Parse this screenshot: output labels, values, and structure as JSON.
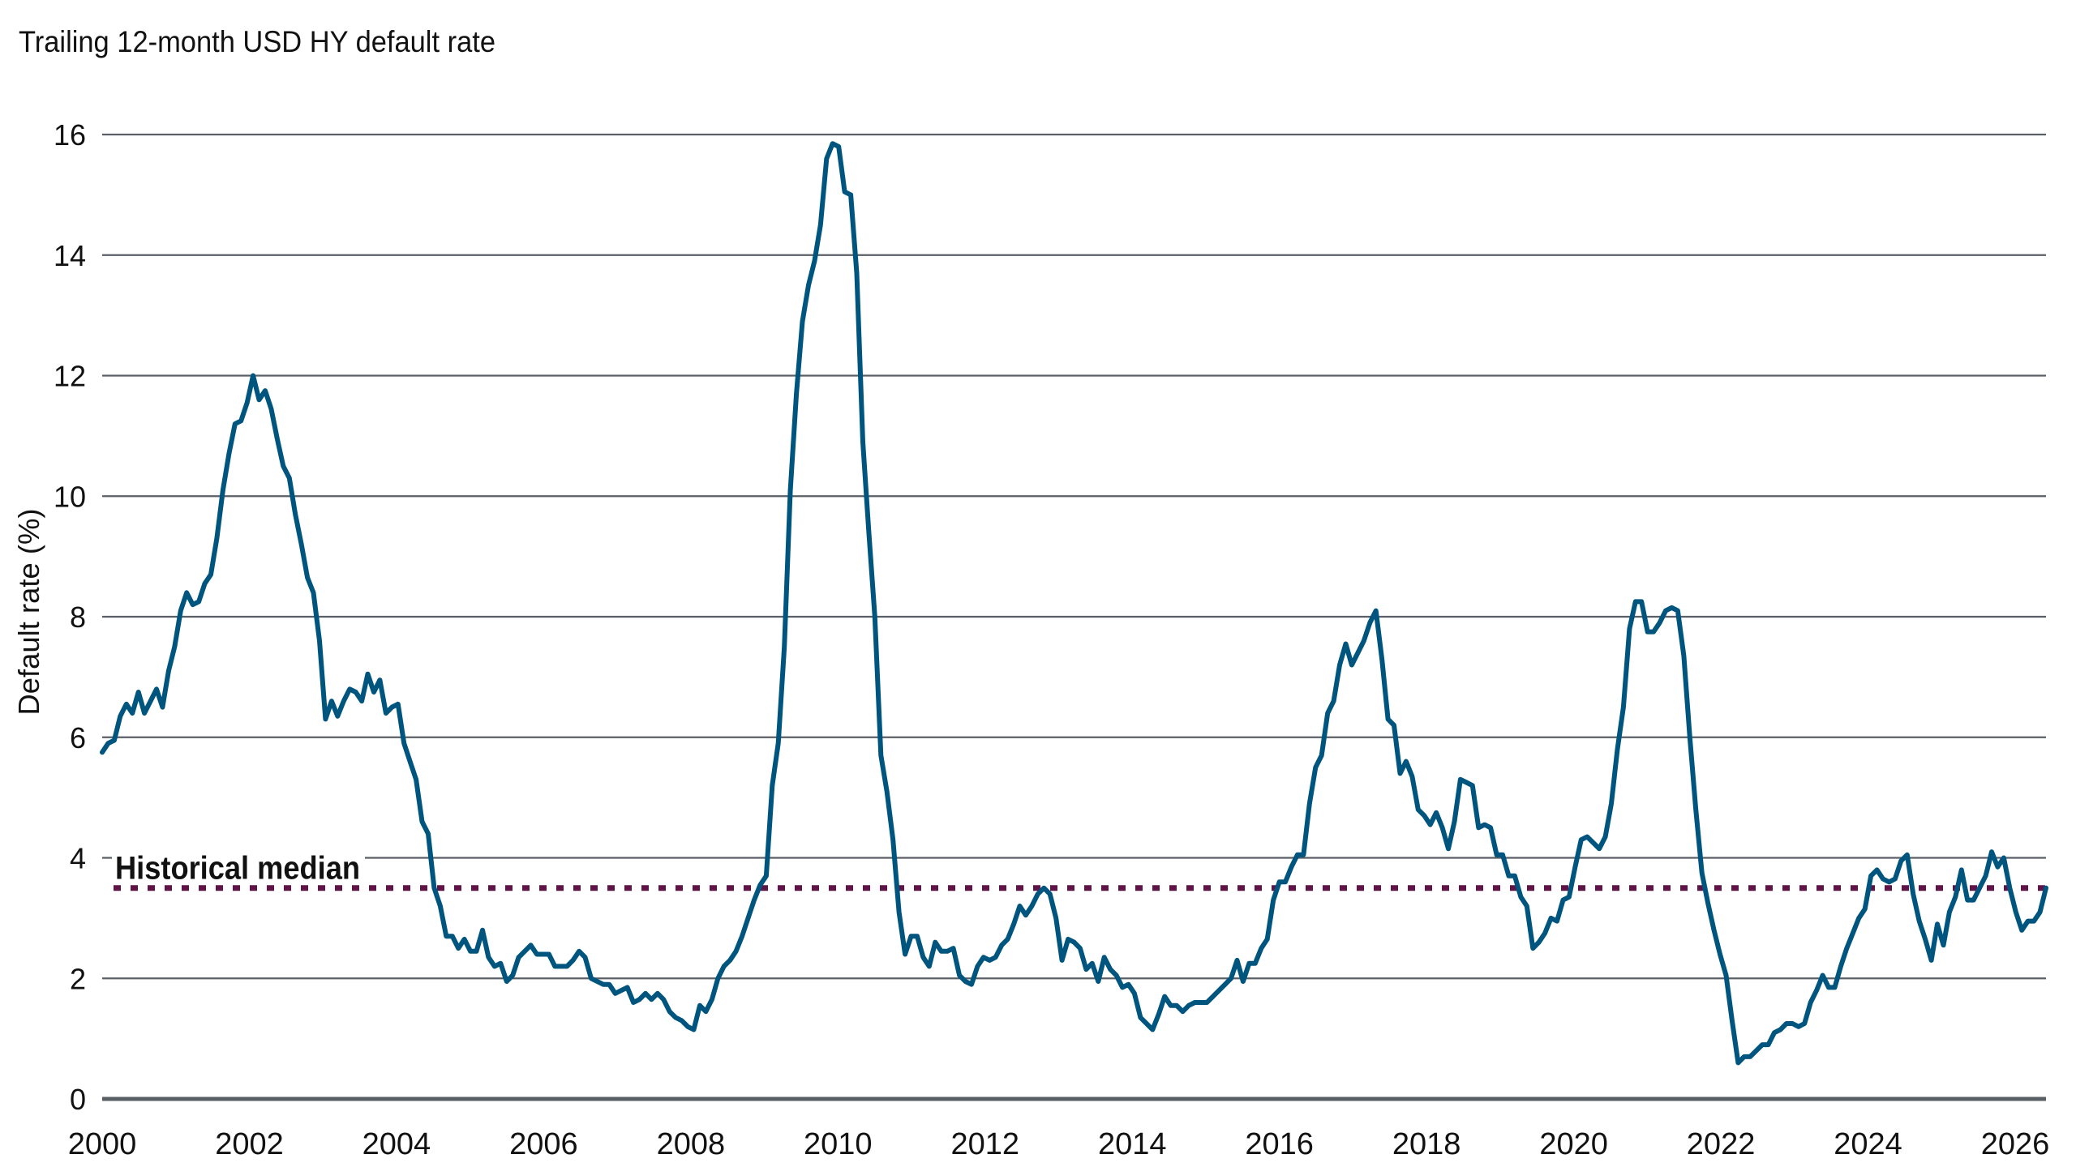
{
  "chart_data": {
    "type": "line",
    "title": "Trailing 12-month USD HY default rate",
    "xlabel": "",
    "ylabel": "Default rate (%)",
    "ylim": [
      0,
      16
    ],
    "xlim": [
      2000,
      2026.4
    ],
    "yticks": [
      0,
      2,
      4,
      6,
      8,
      10,
      12,
      14,
      16
    ],
    "xticks": [
      2000,
      2002,
      2004,
      2006,
      2008,
      2010,
      2012,
      2014,
      2016,
      2018,
      2020,
      2022,
      2024,
      2026
    ],
    "grid": "horizontal",
    "colors": {
      "series": "#00557f",
      "median": "#5e1446",
      "grid": "#5a5f66"
    },
    "frequency": "monthly",
    "median": {
      "label": "Historical median",
      "value": 3.5
    },
    "series": [
      {
        "values": [
          5.75,
          5.9,
          5.95,
          6.35,
          6.55,
          6.4,
          6.75,
          6.4,
          6.6,
          6.8,
          6.5,
          7.1,
          7.5,
          8.1,
          8.4,
          8.2,
          8.25,
          8.55,
          8.7,
          9.3,
          10.1,
          10.7,
          11.2,
          11.25,
          11.55,
          12.0,
          11.6,
          11.75,
          11.45,
          10.95,
          10.5,
          10.3,
          9.7,
          9.2,
          8.65,
          8.4,
          7.6,
          6.3,
          6.6,
          6.35,
          6.6,
          6.8,
          6.75,
          6.6,
          7.05,
          6.75,
          6.95,
          6.4,
          6.5,
          6.55,
          5.9,
          5.6,
          5.3,
          4.6,
          4.4,
          3.5,
          3.2,
          2.7,
          2.7,
          2.5,
          2.65,
          2.45,
          2.45,
          2.8,
          2.35,
          2.2,
          2.25,
          1.95,
          2.05,
          2.35,
          2.45,
          2.55,
          2.4,
          2.4,
          2.4,
          2.2,
          2.2,
          2.2,
          2.3,
          2.45,
          2.35,
          2.0,
          1.95,
          1.9,
          1.9,
          1.75,
          1.8,
          1.85,
          1.6,
          1.65,
          1.75,
          1.65,
          1.75,
          1.65,
          1.45,
          1.35,
          1.3,
          1.2,
          1.15,
          1.55,
          1.45,
          1.65,
          2.0,
          2.2,
          2.3,
          2.45,
          2.7,
          3.0,
          3.3,
          3.55,
          3.7,
          5.2,
          5.9,
          7.5,
          10.1,
          11.7,
          12.9,
          13.5,
          13.9,
          14.5,
          15.6,
          15.85,
          15.8,
          15.05,
          15.0,
          13.7,
          10.9,
          9.4,
          8.0,
          5.7,
          5.1,
          4.3,
          3.1,
          2.4,
          2.7,
          2.7,
          2.35,
          2.2,
          2.6,
          2.45,
          2.45,
          2.5,
          2.05,
          1.95,
          1.9,
          2.2,
          2.35,
          2.3,
          2.35,
          2.55,
          2.65,
          2.9,
          3.2,
          3.05,
          3.2,
          3.4,
          3.5,
          3.4,
          3.0,
          2.3,
          2.65,
          2.6,
          2.5,
          2.15,
          2.25,
          1.95,
          2.35,
          2.15,
          2.05,
          1.85,
          1.9,
          1.75,
          1.35,
          1.25,
          1.15,
          1.4,
          1.7,
          1.55,
          1.55,
          1.45,
          1.55,
          1.6,
          1.6,
          1.6,
          1.7,
          1.8,
          1.9,
          2.0,
          2.3,
          1.95,
          2.25,
          2.25,
          2.5,
          2.65,
          3.3,
          3.6,
          3.6,
          3.85,
          4.05,
          4.05,
          4.9,
          5.5,
          5.7,
          6.4,
          6.6,
          7.2,
          7.55,
          7.2,
          7.4,
          7.6,
          7.9,
          8.1,
          7.3,
          6.3,
          6.2,
          5.4,
          5.6,
          5.35,
          4.8,
          4.7,
          4.55,
          4.75,
          4.5,
          4.15,
          4.6,
          5.3,
          5.25,
          5.2,
          4.5,
          4.55,
          4.5,
          4.05,
          4.05,
          3.7,
          3.7,
          3.35,
          3.2,
          2.5,
          2.6,
          2.75,
          3.0,
          2.95,
          3.3,
          3.35,
          3.85,
          4.3,
          4.35,
          4.25,
          4.15,
          4.35,
          4.9,
          5.8,
          6.5,
          7.8,
          8.25,
          8.25,
          7.75,
          7.75,
          7.9,
          8.1,
          8.15,
          8.1,
          7.35,
          6.0,
          4.8,
          3.75,
          3.25,
          2.8,
          2.4,
          2.05,
          1.3,
          0.6,
          0.7,
          0.7,
          0.8,
          0.9,
          0.9,
          1.1,
          1.15,
          1.25,
          1.25,
          1.2,
          1.25,
          1.6,
          1.8,
          2.05,
          1.85,
          1.85,
          2.2,
          2.5,
          2.75,
          3.0,
          3.15,
          3.7,
          3.8,
          3.65,
          3.6,
          3.65,
          3.95,
          4.05,
          3.4,
          2.95,
          2.65,
          2.3,
          2.9,
          2.55,
          3.1,
          3.35,
          3.8,
          3.3,
          3.3,
          3.5,
          3.7,
          4.1,
          3.85,
          4.0,
          3.5,
          3.1,
          2.8,
          2.95,
          2.95,
          3.1,
          3.5
        ]
      }
    ]
  }
}
